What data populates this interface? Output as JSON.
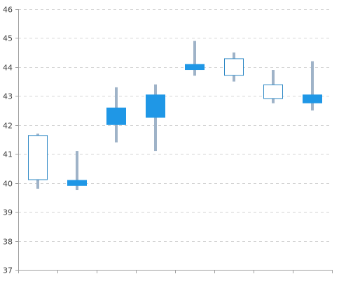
{
  "chart_data": {
    "type": "candlestick",
    "title": "",
    "xlabel": "",
    "ylabel": "",
    "ylim": [
      37,
      46
    ],
    "yticks": [
      37,
      38,
      39,
      40,
      41,
      42,
      43,
      44,
      45,
      46
    ],
    "ytick_labels": [
      "37",
      "38",
      "39",
      "40",
      "41",
      "42",
      "43",
      "44",
      "45",
      "46"
    ],
    "grid": "horizontal-dashed",
    "legend": "none",
    "categories": [
      "",
      "",
      "",
      "",
      "",
      "",
      "",
      ""
    ],
    "candles": [
      {
        "open": 40.1,
        "high": 41.7,
        "low": 39.8,
        "close": 41.65
      },
      {
        "open": 40.1,
        "high": 41.1,
        "low": 39.75,
        "close": 39.9
      },
      {
        "open": 42.6,
        "high": 43.3,
        "low": 41.4,
        "close": 42.0
      },
      {
        "open": 43.05,
        "high": 43.4,
        "low": 41.1,
        "close": 42.25
      },
      {
        "open": 44.1,
        "high": 44.9,
        "low": 43.7,
        "close": 43.9
      },
      {
        "open": 43.7,
        "high": 44.5,
        "low": 43.5,
        "close": 44.3
      },
      {
        "open": 42.9,
        "high": 43.9,
        "low": 42.75,
        "close": 43.4
      },
      {
        "open": 43.05,
        "high": 44.2,
        "low": 42.5,
        "close": 42.75
      }
    ],
    "colors": {
      "bearish_fill": "#1f97e6",
      "bullish_outline": "#2a86c4",
      "wick": "#9fb3c8",
      "grid": "#d4d4d4",
      "axis": "#a0a0a0"
    }
  }
}
